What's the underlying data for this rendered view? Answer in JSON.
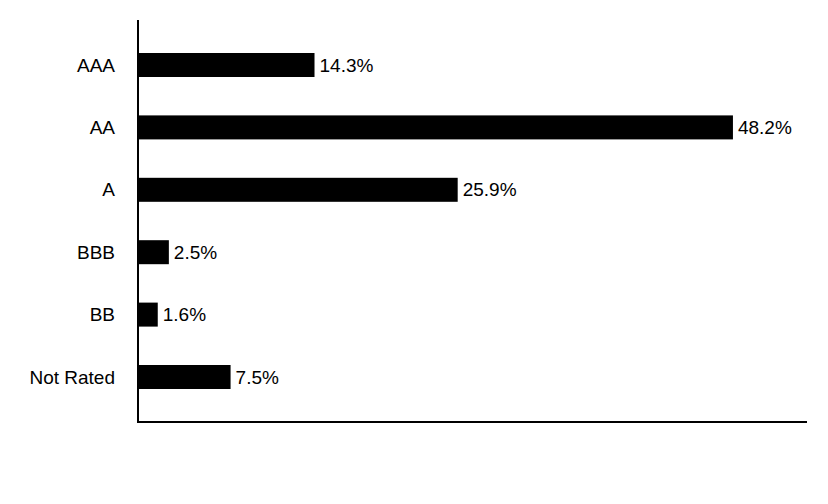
{
  "chart_data": {
    "type": "bar",
    "orientation": "horizontal",
    "categories": [
      "AAA",
      "AA",
      "A",
      "BBB",
      "BB",
      "Not Rated"
    ],
    "values": [
      14.3,
      48.2,
      25.9,
      2.5,
      1.6,
      7.5
    ],
    "value_labels": [
      "14.3%",
      "48.2%",
      "25.9%",
      "2.5%",
      "1.6%",
      "7.5%"
    ],
    "color": "#000000",
    "xlim": [
      0,
      54.2
    ],
    "data_labels": true,
    "tick_labels": "y",
    "grid": false
  }
}
